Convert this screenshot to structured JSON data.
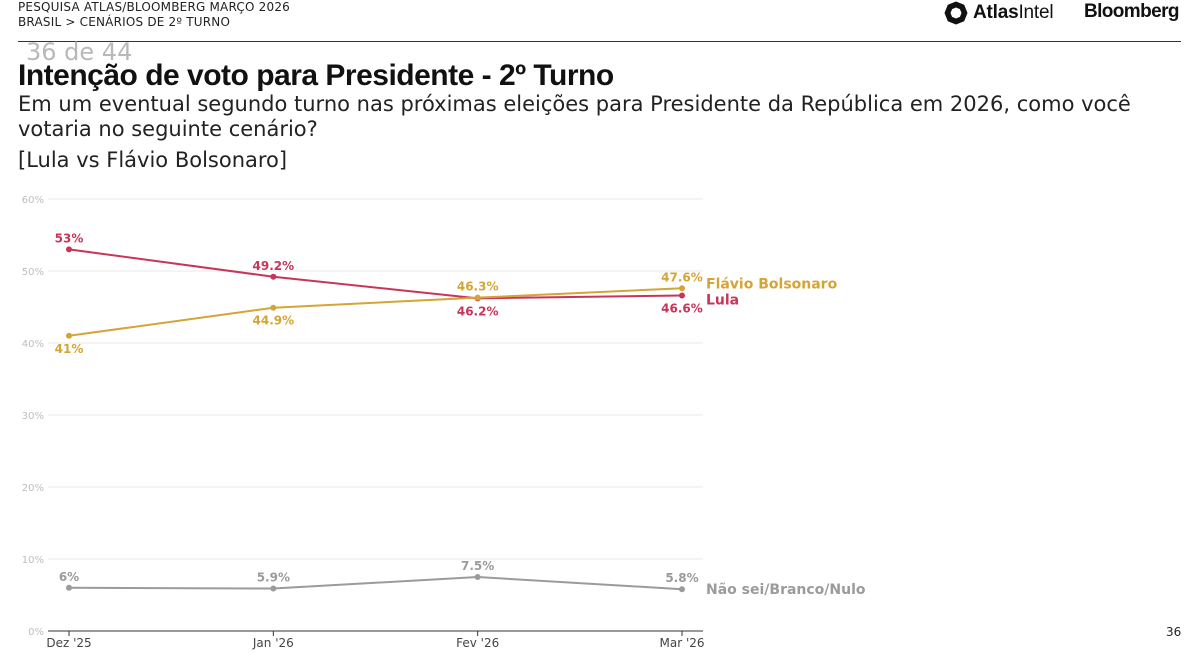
{
  "header": {
    "survey": "PESQUISA ATLAS/BLOOMBERG MARÇO 2026",
    "breadcrumb": "BRASIL > CENÁRIOS DE 2º TURNO",
    "logo_atlas_bold": "Atlas",
    "logo_atlas_regular": "Intel",
    "logo_bloomberg": "Bloomberg"
  },
  "page_counter": "36 de 44",
  "page_number": "36",
  "chart_data": {
    "type": "line",
    "title": "Intenção de voto para Presidente - 2º Turno",
    "subtitle": "Em um eventual segundo turno nas próximas eleições para Presidente da República em 2026, como você votaria no seguinte cenário?",
    "scenario": "[Lula vs Flávio Bolsonaro]",
    "categories": [
      "Dez '25",
      "Jan '26",
      "Fev '26",
      "Mar '26"
    ],
    "ylim": [
      0,
      60
    ],
    "yticks": [
      "0%",
      "10%",
      "20%",
      "30%",
      "40%",
      "50%",
      "60%"
    ],
    "grid": true,
    "series": [
      {
        "name": "Lula",
        "color": "#c7355a",
        "values": [
          53,
          49.2,
          46.2,
          46.6
        ],
        "labels": [
          "53%",
          "49.2%",
          "46.2%",
          "46.6%"
        ],
        "label_pos": [
          "above",
          "above",
          "below",
          "below"
        ]
      },
      {
        "name": "Flávio Bolsonaro",
        "color": "#d4a536",
        "values": [
          41,
          44.9,
          46.3,
          47.6
        ],
        "labels": [
          "41%",
          "44.9%",
          "46.3%",
          "47.6%"
        ],
        "label_pos": [
          "below",
          "below",
          "above",
          "above"
        ]
      },
      {
        "name": "Não sei/Branco/Nulo",
        "color": "#9b9b9b",
        "values": [
          6,
          5.9,
          7.5,
          5.8
        ],
        "labels": [
          "6%",
          "5.9%",
          "7.5%",
          "5.8%"
        ],
        "label_pos": [
          "above",
          "above",
          "above",
          "above"
        ]
      }
    ]
  }
}
